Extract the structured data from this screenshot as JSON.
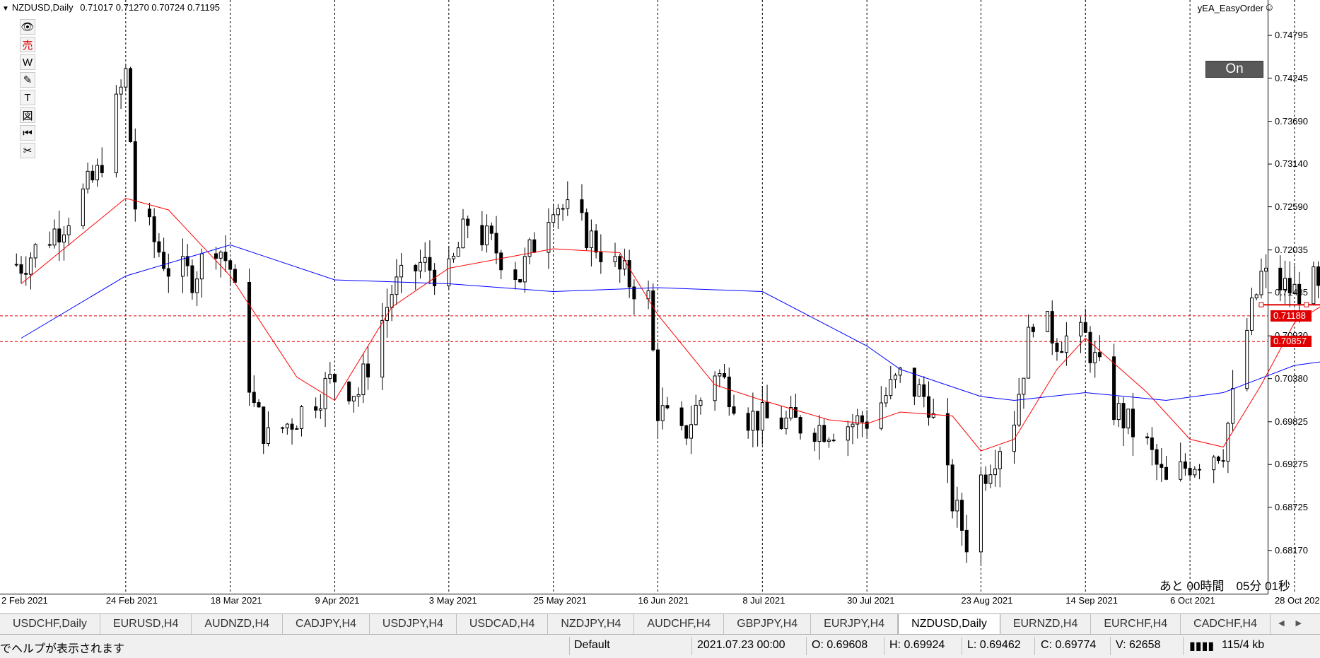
{
  "header": {
    "symbol": "NZDUSD,Daily",
    "ohlc": "0.71017 0.71270 0.70724 0.71195"
  },
  "ea": {
    "name": "yEA_EasyOrder",
    "toggle_label": "On"
  },
  "toolbar_icons": [
    "eye-icon",
    "sell-icon",
    "w-icon",
    "pencil-icon",
    "text-icon",
    "figure-icon",
    "rewind-icon",
    "scissors-icon"
  ],
  "toolbar_glyphs": [
    "👁",
    "売",
    "W",
    "✎",
    "T",
    "図",
    "⏮",
    "✂"
  ],
  "price_axis": [
    "0.74795",
    "0.74245",
    "0.73690",
    "0.73140",
    "0.72590",
    "0.72035",
    "0.71485",
    "0.70930",
    "0.70380",
    "0.69825",
    "0.69275",
    "0.68725",
    "0.68170"
  ],
  "price_tags": [
    {
      "label": "0.71188",
      "value": 0.71188
    },
    {
      "label": "0.70857",
      "value": 0.70857
    }
  ],
  "date_axis": [
    "2 Feb 2021",
    "24 Feb 2021",
    "18 Mar 2021",
    "9 Apr 2021",
    "3 May 2021",
    "25 May 2021",
    "16 Jun 2021",
    "8 Jul 2021",
    "30 Jul 2021",
    "23 Aug 2021",
    "14 Sep 2021",
    "6 Oct 2021",
    "28 Oct 2021"
  ],
  "countdown": "あと 00時間　05分 01秒",
  "tabs": [
    "USDCHF,Daily",
    "EURUSD,H4",
    "AUDNZD,H4",
    "CADJPY,H4",
    "USDJPY,H4",
    "USDCAD,H4",
    "NZDJPY,H4",
    "AUDCHF,H4",
    "GBPJPY,H4",
    "EURJPY,H4",
    "NZDUSD,Daily",
    "EURNZD,H4",
    "EURCHF,H4",
    "CADCHF,H4"
  ],
  "active_tab": "NZDUSD,Daily",
  "status": {
    "help": "でヘルプが表示されます",
    "profile": "Default",
    "datetime": "2021.07.23 00:00",
    "open": "O: 0.69608",
    "high": "H: 0.69924",
    "low": "L: 0.69462",
    "close": "C: 0.69774",
    "volume": "V: 62658",
    "traffic": "115/4 kb"
  },
  "colors": {
    "ma_fast": "#ff0000",
    "ma_slow": "#0000ff",
    "price_tag": "#e00000",
    "on_button": "#595959"
  },
  "chart_data": {
    "type": "candlestick",
    "symbol": "NZDUSD",
    "timeframe": "Daily",
    "ylim": [
      0.6795,
      0.7505
    ],
    "close_path": [
      [
        "2 Feb 2021",
        0.7185
      ],
      [
        "11 Feb 2021",
        0.724
      ],
      [
        "18 Feb 2021",
        0.73
      ],
      [
        "24 Feb 2021",
        0.743
      ],
      [
        "26 Feb 2021",
        0.726
      ],
      [
        "5 Mar 2021",
        0.718
      ],
      [
        "10 Mar 2021",
        0.717
      ],
      [
        "15 Mar 2021",
        0.7215
      ],
      [
        "18 Mar 2021",
        0.718
      ],
      [
        "23 Mar 2021",
        0.7
      ],
      [
        "26 Mar 2021",
        0.696
      ],
      [
        "1 Apr 2021",
        0.699
      ],
      [
        "9 Apr 2021",
        0.704
      ],
      [
        "14 Apr 2021",
        0.702
      ],
      [
        "21 Apr 2021",
        0.715
      ],
      [
        "27 Apr 2021",
        0.7185
      ],
      [
        "3 May 2021",
        0.717
      ],
      [
        "7 May 2021",
        0.724
      ],
      [
        "12 May 2021",
        0.721
      ],
      [
        "18 May 2021",
        0.717
      ],
      [
        "25 May 2021",
        0.727
      ],
      [
        "1 Jun 2021",
        0.7225
      ],
      [
        "8 Jun 2021",
        0.7175
      ],
      [
        "14 Jun 2021",
        0.714
      ],
      [
        "16 Jun 2021",
        0.7
      ],
      [
        "21 Jun 2021",
        0.696
      ],
      [
        "28 Jun 2021",
        0.705
      ],
      [
        "5 Jul 2021",
        0.699
      ],
      [
        "8 Jul 2021",
        0.6985
      ],
      [
        "15 Jul 2021",
        0.698
      ],
      [
        "22 Jul 2021",
        0.6975
      ],
      [
        "30 Jul 2021",
        0.6985
      ],
      [
        "6 Aug 2021",
        0.704
      ],
      [
        "12 Aug 2021",
        0.701
      ],
      [
        "17 Aug 2021",
        0.688
      ],
      [
        "20 Aug 2021",
        0.683
      ],
      [
        "23 Aug 2021",
        0.691
      ],
      [
        "30 Aug 2021",
        0.699
      ],
      [
        "3 Sep 2021",
        0.712
      ],
      [
        "8 Sep 2021",
        0.709
      ],
      [
        "14 Sep 2021",
        0.709
      ],
      [
        "20 Sep 2021",
        0.7
      ],
      [
        "27 Sep 2021",
        0.695
      ],
      [
        "1 Oct 2021",
        0.69
      ],
      [
        "6 Oct 2021",
        0.693
      ],
      [
        "13 Oct 2021",
        0.695
      ],
      [
        "18 Oct 2021",
        0.71
      ],
      [
        "21 Oct 2021",
        0.717
      ],
      [
        "28 Oct 2021",
        0.715
      ],
      [
        "1 Nov 2021",
        0.716
      ],
      [
        "5 Nov 2021",
        0.71
      ],
      [
        "9 Nov 2021",
        0.712
      ]
    ],
    "series": [
      {
        "name": "MA red",
        "color": "#ff0000",
        "values": [
          [
            "2 Feb 2021",
            0.716
          ],
          [
            "24 Feb 2021",
            0.727
          ],
          [
            "5 Mar 2021",
            0.7255
          ],
          [
            "18 Mar 2021",
            0.717
          ],
          [
            "1 Apr 2021",
            0.704
          ],
          [
            "9 Apr 2021",
            0.701
          ],
          [
            "21 Apr 2021",
            0.713
          ],
          [
            "3 May 2021",
            0.718
          ],
          [
            "25 May 2021",
            0.7205
          ],
          [
            "8 Jun 2021",
            0.72
          ],
          [
            "16 Jun 2021",
            0.712
          ],
          [
            "28 Jun 2021",
            0.703
          ],
          [
            "8 Jul 2021",
            0.701
          ],
          [
            "22 Jul 2021",
            0.6985
          ],
          [
            "30 Jul 2021",
            0.698
          ],
          [
            "6 Aug 2021",
            0.6995
          ],
          [
            "17 Aug 2021",
            0.699
          ],
          [
            "23 Aug 2021",
            0.6945
          ],
          [
            "30 Aug 2021",
            0.696
          ],
          [
            "8 Sep 2021",
            0.705
          ],
          [
            "14 Sep 2021",
            0.709
          ],
          [
            "27 Sep 2021",
            0.702
          ],
          [
            "6 Oct 2021",
            0.696
          ],
          [
            "13 Oct 2021",
            0.695
          ],
          [
            "21 Oct 2021",
            0.703
          ],
          [
            "28 Oct 2021",
            0.711
          ],
          [
            "5 Nov 2021",
            0.714
          ]
        ]
      },
      {
        "name": "MA blue",
        "color": "#0000ff",
        "values": [
          [
            "2 Feb 2021",
            0.709
          ],
          [
            "24 Feb 2021",
            0.717
          ],
          [
            "18 Mar 2021",
            0.721
          ],
          [
            "9 Apr 2021",
            0.7165
          ],
          [
            "3 May 2021",
            0.716
          ],
          [
            "25 May 2021",
            0.715
          ],
          [
            "16 Jun 2021",
            0.7155
          ],
          [
            "8 Jul 2021",
            0.715
          ],
          [
            "30 Jul 2021",
            0.708
          ],
          [
            "6 Aug 2021",
            0.705
          ],
          [
            "23 Aug 2021",
            0.7015
          ],
          [
            "30 Aug 2021",
            0.701
          ],
          [
            "14 Sep 2021",
            0.702
          ],
          [
            "1 Oct 2021",
            0.701
          ],
          [
            "13 Oct 2021",
            0.702
          ],
          [
            "28 Oct 2021",
            0.7055
          ],
          [
            "9 Nov 2021",
            0.7065
          ]
        ]
      }
    ],
    "horizontal_lines": [
      0.71188,
      0.70857
    ],
    "trend_segment": {
      "from": [
        "21 Oct 2021",
        0.7133
      ],
      "to": [
        "9 Nov 2021",
        0.7133
      ]
    },
    "grid": "vertical dotted lines at date ticks"
  }
}
